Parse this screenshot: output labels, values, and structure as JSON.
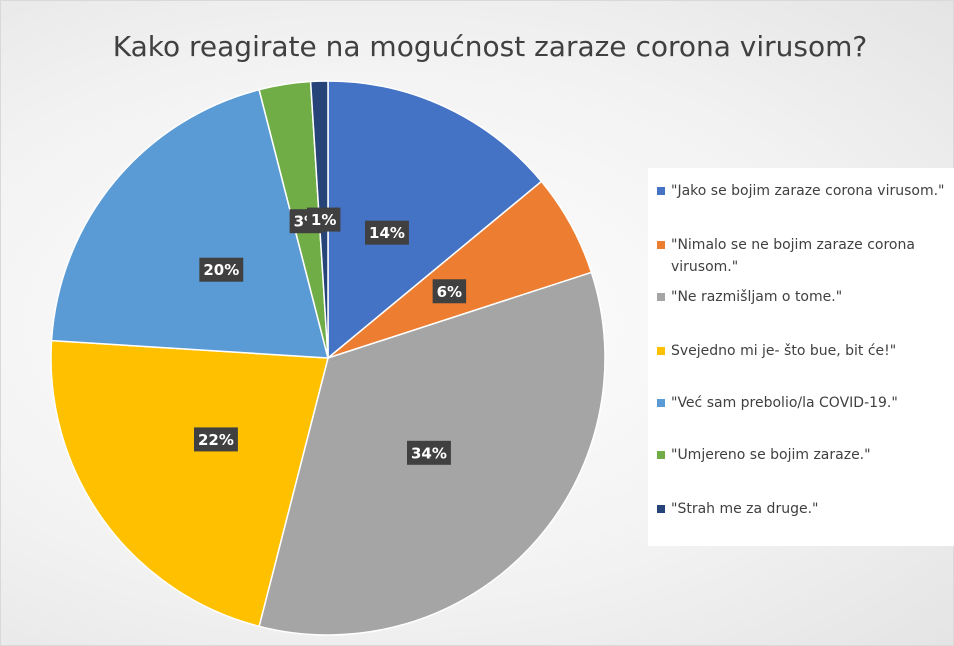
{
  "chart_data": {
    "type": "pie",
    "title": "Kako reagirate na mogućnost zaraze corona virusom?",
    "categories": [
      "\"Jako se bojim zaraze corona virusom.\"",
      "\"Nimalo se ne bojim zaraze corona virusom.\"",
      "\"Ne razmišljam o tome.\"",
      "Svejedno mi je- što bue, bit će!\"",
      "\"Već sam prebolio/la COVID-19.\"",
      "\"Umjereno se bojim zaraze.\"",
      "\"Strah me za druge.\""
    ],
    "values": [
      14,
      6,
      34,
      22,
      20,
      3,
      1
    ],
    "value_labels": [
      "14%",
      "6%",
      "34%",
      "22%",
      "20%",
      "3%",
      "1%"
    ],
    "colors": [
      "#4472c4",
      "#ed7d31",
      "#a5a5a5",
      "#ffc000",
      "#5b9bd5",
      "#70ad47",
      "#264478"
    ],
    "legend": "right"
  }
}
